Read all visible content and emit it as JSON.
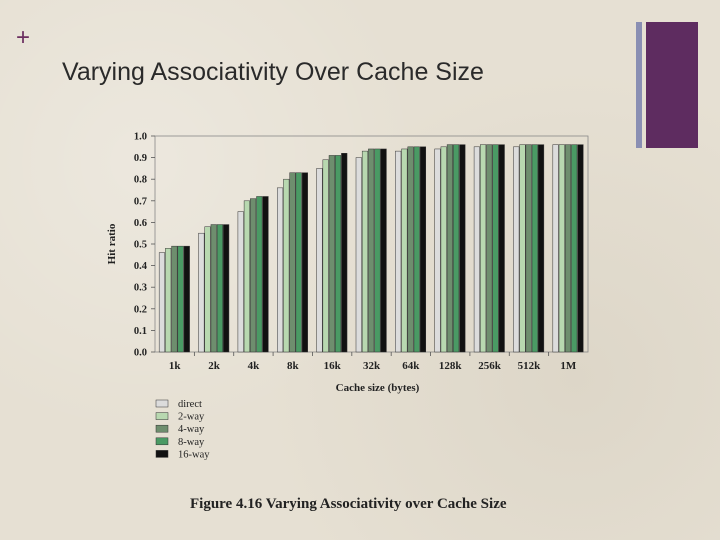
{
  "slide": {
    "plus": "+",
    "title": "Varying Associativity Over Cache Size",
    "caption": "Figure 4.16  Varying Associativity over Cache Size"
  },
  "colors": {
    "accent_thin": "#8a8fb3",
    "accent_thick": "#5e2c60",
    "series": [
      "#dcdcdc",
      "#b8d8b0",
      "#6e8e6e",
      "#4a9a64",
      "#111111"
    ]
  },
  "chart_data": {
    "type": "bar",
    "title": "",
    "xlabel": "Cache size (bytes)",
    "ylabel": "Hit ratio",
    "ylim": [
      0.0,
      1.0
    ],
    "yticks": [
      "0.0",
      "0.1",
      "0.2",
      "0.3",
      "0.4",
      "0.5",
      "0.6",
      "0.7",
      "0.8",
      "0.9",
      "1.0"
    ],
    "categories": [
      "1k",
      "2k",
      "4k",
      "8k",
      "16k",
      "32k",
      "64k",
      "128k",
      "256k",
      "512k",
      "1M"
    ],
    "legend_position": "bottom-left",
    "grid": false,
    "series": [
      {
        "name": "direct",
        "values": [
          0.46,
          0.55,
          0.65,
          0.76,
          0.85,
          0.9,
          0.93,
          0.94,
          0.95,
          0.95,
          0.96
        ]
      },
      {
        "name": "2-way",
        "values": [
          0.48,
          0.58,
          0.7,
          0.8,
          0.89,
          0.93,
          0.94,
          0.95,
          0.96,
          0.96,
          0.96
        ]
      },
      {
        "name": "4-way",
        "values": [
          0.49,
          0.59,
          0.71,
          0.83,
          0.91,
          0.94,
          0.95,
          0.96,
          0.96,
          0.96,
          0.96
        ]
      },
      {
        "name": "8-way",
        "values": [
          0.49,
          0.59,
          0.72,
          0.83,
          0.91,
          0.94,
          0.95,
          0.96,
          0.96,
          0.96,
          0.96
        ]
      },
      {
        "name": "16-way",
        "values": [
          0.49,
          0.59,
          0.72,
          0.83,
          0.92,
          0.94,
          0.95,
          0.96,
          0.96,
          0.96,
          0.96
        ]
      }
    ]
  }
}
